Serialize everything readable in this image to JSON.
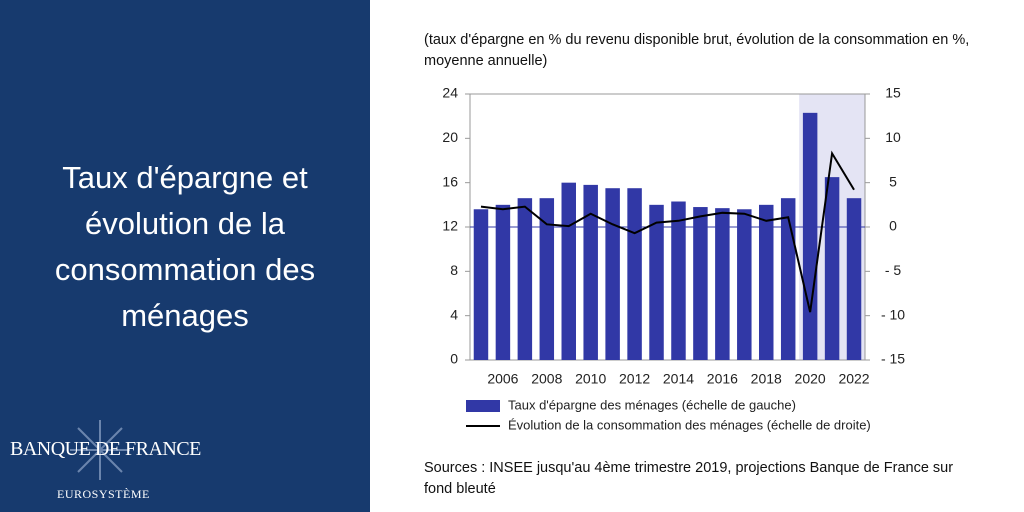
{
  "panel": {
    "title": "Taux d'épargne et évolution de la consommation des ménages",
    "brand": "BANQUE DE FRANCE",
    "brand_sub": "EUROSYSTÈME"
  },
  "chart_data": {
    "type": "combo",
    "subtitle": "(taux d'épargne en % du revenu disponible brut, évolution de la consommation en %, moyenne annuelle)",
    "note": "Sources : INSEE jusqu'au 4ème trimestre 2019, projections Banque de France sur fond bleuté",
    "categories": [
      null,
      "2006",
      null,
      "2008",
      null,
      "2010",
      null,
      "2012",
      null,
      "2014",
      null,
      "2016",
      null,
      "2018",
      null,
      "2020",
      null,
      "2022"
    ],
    "series": [
      {
        "name": "Taux d'épargne des ménages (échelle de gauche)",
        "type": "bar",
        "axis": "y",
        "color": "#3138a6",
        "values": [
          13.6,
          14.0,
          14.6,
          14.6,
          16.0,
          15.8,
          15.5,
          15.5,
          14.0,
          14.3,
          13.8,
          13.7,
          13.6,
          14.0,
          14.6,
          22.3,
          16.5,
          14.6
        ]
      },
      {
        "name": "Évolution de la consommation des ménages (échelle de droite)",
        "type": "line",
        "axis": "y2",
        "color": "#000000",
        "values": [
          2.3,
          2.0,
          2.3,
          0.3,
          0.1,
          1.5,
          0.3,
          -0.7,
          0.5,
          0.7,
          1.2,
          1.6,
          1.5,
          0.7,
          1.1,
          -9.6,
          8.3,
          4.2
        ]
      }
    ],
    "ylim": [
      0,
      24
    ],
    "yticks": [
      0,
      4,
      8,
      12,
      16,
      20,
      24
    ],
    "y2lim": [
      -15,
      15
    ],
    "y2ticks": [
      {
        "value": -15,
        "label": "- 15"
      },
      {
        "value": -10,
        "label": "- 10"
      },
      {
        "value": -5,
        "label": "- 5"
      },
      0,
      5,
      10,
      15
    ]
  }
}
